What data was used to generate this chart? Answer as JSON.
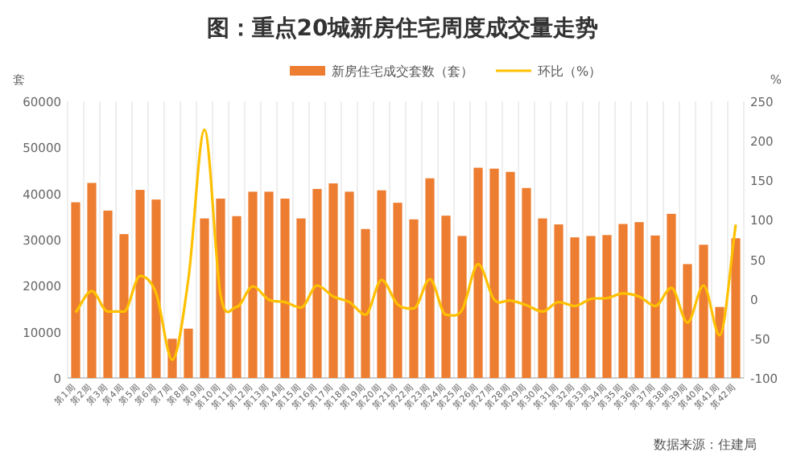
{
  "chart_data": {
    "type": "bar",
    "title": "图：重点20城新房住宅周度成交量走势",
    "ylabel": "套",
    "y2label": "%",
    "categories": [
      "第1周",
      "第2周",
      "第3周",
      "第4周",
      "第5周",
      "第6周",
      "第7周",
      "第8周",
      "第9周",
      "第10周",
      "第11周",
      "第12周",
      "第13周",
      "第14周",
      "第15周",
      "第16周",
      "第17周",
      "第18周",
      "第19周",
      "第20周",
      "第21周",
      "第22周",
      "第23周",
      "第24周",
      "第25周",
      "第26周",
      "第27周",
      "第28周",
      "第29周",
      "第30周",
      "第31周",
      "第32周",
      "第33周",
      "第34周",
      "第35周",
      "第36周",
      "第37周",
      "第38周",
      "第39周",
      "第40周",
      "第41周",
      "第42周"
    ],
    "series": [
      {
        "name": "新房住宅成交套数（套）",
        "color": "#ed7d31",
        "values": [
          38100,
          42300,
          36300,
          31200,
          40800,
          38700,
          8500,
          10700,
          34600,
          38900,
          35100,
          40400,
          40400,
          38900,
          34600,
          41000,
          42200,
          40400,
          32300,
          40700,
          38000,
          34400,
          43300,
          35200,
          30800,
          45600,
          45400,
          44700,
          41200,
          34600,
          33300,
          30500,
          30800,
          31000,
          33400,
          33800,
          30900,
          35600,
          24700,
          28900,
          15400,
          30300
        ]
      },
      {
        "name": "环比（%）",
        "type": "line",
        "axis": "y2",
        "color": "#ffc000",
        "marker": "none",
        "values": [
          -17,
          10,
          -16,
          -16,
          29,
          7,
          -77,
          25,
          214,
          5,
          -10,
          16,
          -1,
          -4,
          -11,
          17,
          3,
          -4,
          -20,
          24,
          -7,
          -12,
          25,
          -20,
          -14,
          44,
          -1,
          -2,
          -8,
          -16,
          -4,
          -9,
          0,
          1,
          7,
          3,
          -9,
          14,
          -30,
          17,
          -46,
          94
        ]
      }
    ],
    "ylim": [
      0,
      60000
    ],
    "yticks": [
      0,
      10000,
      20000,
      30000,
      40000,
      50000,
      60000
    ],
    "y2lim": [
      -100,
      250
    ],
    "y2ticks": [
      -100,
      -50,
      0,
      50,
      100,
      150,
      200,
      250
    ],
    "grid": "x",
    "legend": "top",
    "annotations": [
      "数据来源：住建局"
    ]
  }
}
